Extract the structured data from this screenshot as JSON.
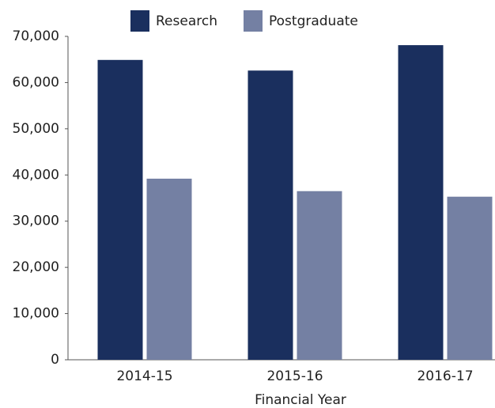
{
  "chart_data": {
    "type": "bar",
    "x_label": "Financial Year",
    "categories": [
      "2014-15",
      "2015-16",
      "2016-17"
    ],
    "series": [
      {
        "name": "Research",
        "color": "#1a2f5e",
        "values": [
          64900,
          62600,
          68100
        ]
      },
      {
        "name": "Postgraduate",
        "color": "#7480a3",
        "values": [
          39200,
          36500,
          35300
        ]
      }
    ],
    "ylim": [
      0,
      70000
    ],
    "yticks": [
      0,
      {
        "value": 10000,
        "label": "10,000"
      },
      {
        "value": 20000,
        "label": "20,000"
      },
      {
        "value": 30000,
        "label": "30,000"
      },
      {
        "value": 40000,
        "label": "40,000"
      },
      {
        "value": 50000,
        "label": "50,000"
      },
      {
        "value": 60000,
        "label": "60,000"
      },
      {
        "value": 70000,
        "label": "70,000"
      }
    ],
    "grid": false,
    "legend": "top"
  }
}
